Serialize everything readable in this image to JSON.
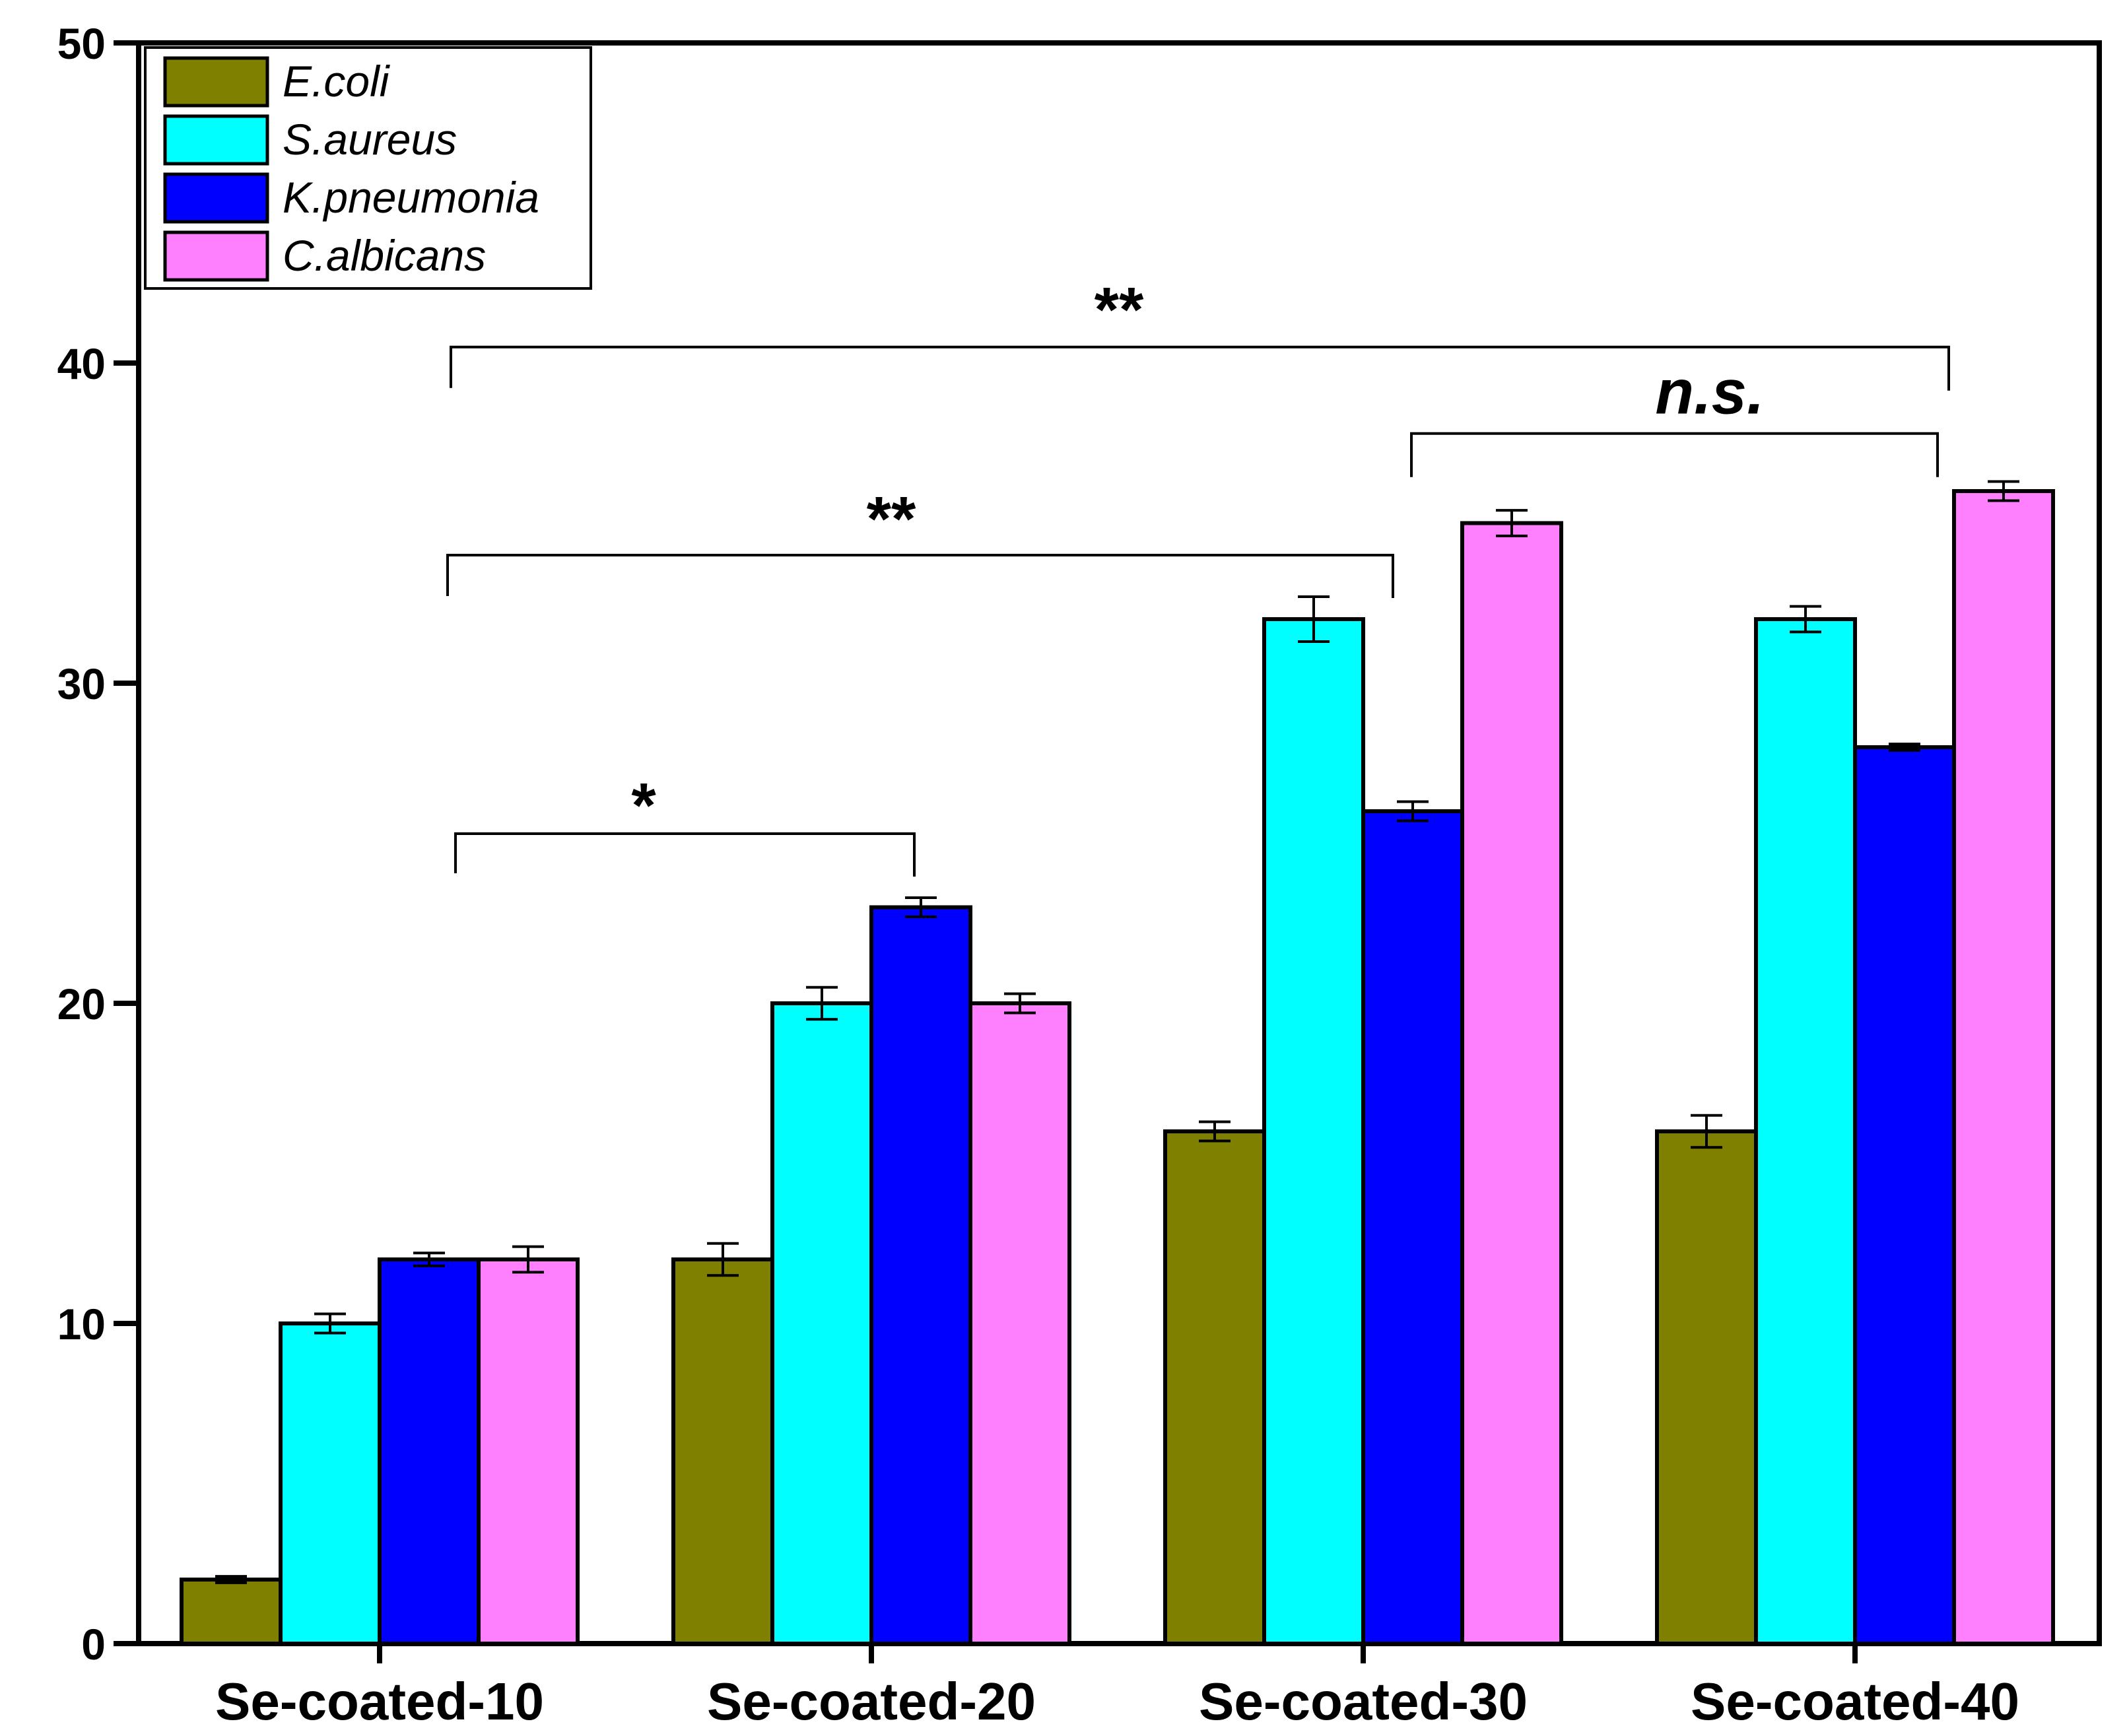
{
  "chart_data": {
    "type": "bar",
    "title": "",
    "xlabel": "",
    "ylabel": "",
    "ylim": [
      0,
      50
    ],
    "yticks": [
      0,
      10,
      20,
      30,
      40,
      50
    ],
    "categories": [
      "Se-coated-10",
      "Se-coated-20",
      "Se-coated-30",
      "Se-coated-40"
    ],
    "series": [
      {
        "name": "E.coli",
        "color": "#808000",
        "values": [
          2,
          12,
          16,
          16
        ],
        "errors": [
          0.1,
          0.5,
          0.3,
          0.5
        ]
      },
      {
        "name": "S.aureus",
        "color": "#00ffff",
        "values": [
          10,
          20,
          32,
          32
        ],
        "errors": [
          0.3,
          0.5,
          0.7,
          0.4
        ]
      },
      {
        "name": "K.pneumonia",
        "color": "#0000ff",
        "values": [
          12,
          23,
          26,
          28
        ],
        "errors": [
          0.2,
          0.3,
          0.3,
          0.1
        ]
      },
      {
        "name": "C.albicans",
        "color": "#ff80ff",
        "values": [
          12,
          20,
          35,
          36
        ],
        "errors": [
          0.4,
          0.3,
          0.4,
          0.3
        ]
      }
    ],
    "legend_position": "top-left",
    "significance": [
      {
        "label": "*",
        "from": "Se-coated-10 K.pneumonia",
        "to": "Se-coated-20 K.pneumonia",
        "bracket_y": 25.3
      },
      {
        "label": "**",
        "from": "Se-coated-10 K.pneumonia",
        "to": "Se-coated-30 K.pneumonia",
        "bracket_y": 34.0
      },
      {
        "label": "n.s.",
        "from": "Se-coated-30 K.pneumonia",
        "to": "Se-coated-40 K.pneumonia",
        "bracket_y": 37.8
      },
      {
        "label": "**",
        "from": "Se-coated-10 K.pneumonia",
        "to": "Se-coated-40 K.pneumonia",
        "bracket_y": 40.5
      }
    ]
  }
}
